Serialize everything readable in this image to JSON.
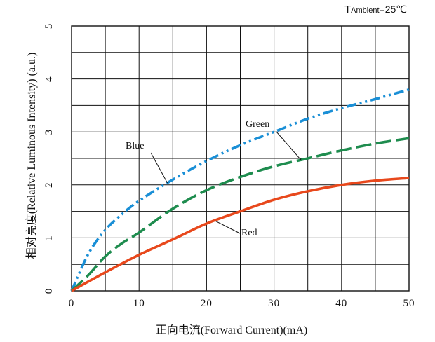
{
  "chart_data": {
    "type": "line",
    "xlabel": "正向电流(Forward  Current)(mA)",
    "ylabel": "相对亮度(Relative Luminous Intensity) (a.u.)",
    "condition": {
      "prefix": "T",
      "subscript": "Ambient",
      "suffix": "=25℃"
    },
    "xlim": [
      0,
      50
    ],
    "ylim": [
      0,
      5
    ],
    "x_ticks": [
      "0",
      "10",
      "20",
      "30",
      "40",
      "50"
    ],
    "y_ticks": [
      "0",
      "1",
      "2",
      "3",
      "4",
      "5"
    ],
    "grid": true,
    "series": [
      {
        "name": "Blue",
        "color": "#1a8fd6",
        "dash": "dash-dot-dot",
        "x": [
          0,
          2.5,
          5,
          7.5,
          10,
          15,
          20,
          25,
          30,
          35,
          40,
          45,
          50
        ],
        "y": [
          0,
          0.7,
          1.15,
          1.45,
          1.7,
          2.1,
          2.45,
          2.75,
          3.0,
          3.25,
          3.45,
          3.62,
          3.8
        ]
      },
      {
        "name": "Green",
        "color": "#1e8c4e",
        "dash": "long-dash",
        "x": [
          0,
          2.5,
          5,
          7.5,
          10,
          15,
          20,
          25,
          30,
          35,
          40,
          45,
          50
        ],
        "y": [
          0,
          0.3,
          0.65,
          0.9,
          1.1,
          1.55,
          1.9,
          2.15,
          2.35,
          2.5,
          2.65,
          2.78,
          2.88
        ]
      },
      {
        "name": "Red",
        "color": "#e8481c",
        "dash": "solid",
        "x": [
          0,
          5,
          10,
          15,
          20,
          25,
          30,
          35,
          40,
          45,
          50
        ],
        "y": [
          0,
          0.35,
          0.68,
          0.97,
          1.27,
          1.5,
          1.72,
          1.88,
          2.0,
          2.08,
          2.13
        ]
      }
    ]
  }
}
